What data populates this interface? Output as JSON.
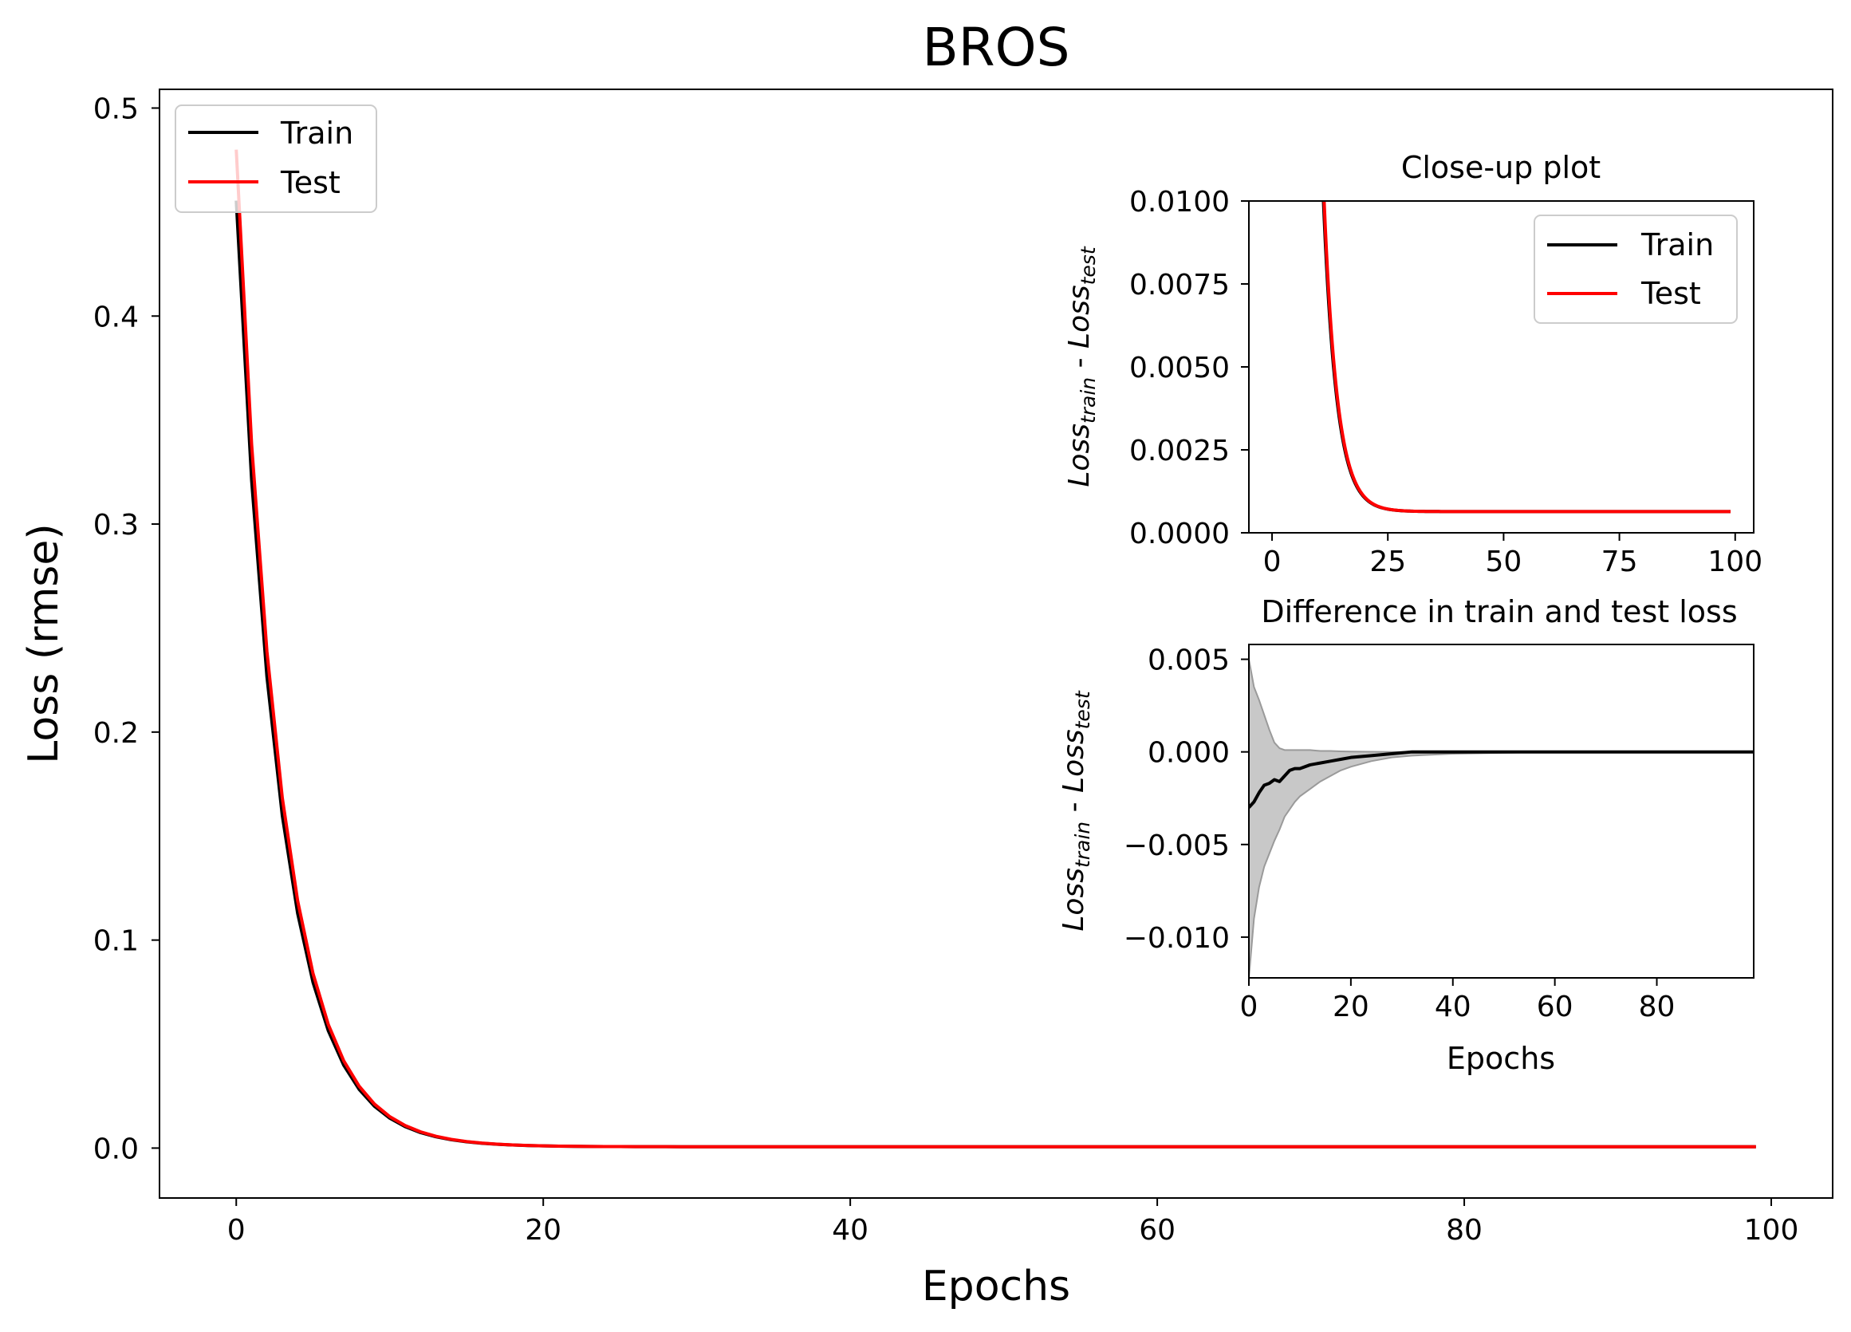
{
  "chart_data": [
    {
      "id": "main",
      "type": "line",
      "title": "BROS",
      "xlabel": "Epochs",
      "ylabel": "Loss (rmse)",
      "xlim": [
        -5,
        104
      ],
      "ylim": [
        -0.024,
        0.509
      ],
      "xticks": [
        0,
        20,
        40,
        60,
        80,
        100
      ],
      "xtick_labels": [
        "0",
        "20",
        "40",
        "60",
        "80",
        "100"
      ],
      "yticks": [
        0.0,
        0.1,
        0.2,
        0.3,
        0.4,
        0.5
      ],
      "ytick_labels": [
        "0.0",
        "0.1",
        "0.2",
        "0.3",
        "0.4",
        "0.5"
      ],
      "grid": false,
      "legend": {
        "location": "upper-left",
        "entries": [
          "Train",
          "Test"
        ]
      },
      "series": [
        {
          "name": "Train",
          "color": "#000000",
          "model": {
            "start": 0.48,
            "decay": 0.35,
            "floor": 0.00064,
            "x_shift": -0.15
          }
        },
        {
          "name": "Test",
          "color": "#ff0000",
          "model": {
            "start": 0.48,
            "decay": 0.35,
            "floor": 0.00064,
            "x_shift": 0.0
          }
        }
      ],
      "x_range": [
        0,
        99
      ]
    },
    {
      "id": "closeup",
      "type": "line",
      "title": "Close-up plot",
      "xlabel": "",
      "ylabel": "Loss_train - Loss_test",
      "ylabel_parts": {
        "a": "Loss",
        "a_sub": "train",
        "sep": " - ",
        "b": "Loss",
        "b_sub": "test"
      },
      "xlim": [
        -5,
        104
      ],
      "ylim": [
        0.0,
        0.01
      ],
      "xticks": [
        0,
        25,
        50,
        75,
        100
      ],
      "xtick_labels": [
        "0",
        "25",
        "50",
        "75",
        "100"
      ],
      "yticks": [
        0.0,
        0.0025,
        0.005,
        0.0075,
        0.01
      ],
      "ytick_labels": [
        "0.0000",
        "0.0025",
        "0.0050",
        "0.0075",
        "0.0100"
      ],
      "grid": false,
      "legend": {
        "location": "upper-right",
        "entries": [
          "Train",
          "Test"
        ]
      }
    },
    {
      "id": "difference",
      "type": "area",
      "title": "Difference in train and test loss",
      "xlabel": "Epochs",
      "ylabel": "Loss_train - Loss_test",
      "ylabel_parts": {
        "a": "Loss",
        "a_sub": "train",
        "sep": " - ",
        "b": "Loss",
        "b_sub": "test"
      },
      "xlim": [
        0,
        99
      ],
      "ylim": [
        -0.0122,
        0.0058
      ],
      "xticks": [
        0,
        20,
        40,
        60,
        80
      ],
      "xtick_labels": [
        "0",
        "20",
        "40",
        "60",
        "80"
      ],
      "yticks": [
        -0.01,
        -0.005,
        0.0,
        0.005
      ],
      "ytick_labels": [
        "−0.010",
        "−0.005",
        "0.000",
        "0.005"
      ],
      "grid": false,
      "mean": {
        "color": "#000000",
        "x": [
          0,
          1,
          2,
          3,
          4,
          5,
          6,
          7,
          8,
          9,
          10,
          12,
          14,
          16,
          18,
          20,
          24,
          28,
          32,
          40,
          60,
          80,
          99
        ],
        "y": [
          -0.003,
          -0.0027,
          -0.0022,
          -0.0018,
          -0.0017,
          -0.0015,
          -0.0016,
          -0.0013,
          -0.001,
          -0.0009,
          -0.0009,
          -0.0007,
          -0.0006,
          -0.0005,
          -0.0004,
          -0.0003,
          -0.0002,
          -0.0001,
          0.0,
          0.0,
          0.0,
          0.0,
          0.0
        ]
      },
      "band": {
        "color": "#c8c8c8",
        "x": [
          0,
          1,
          2,
          3,
          4,
          5,
          6,
          7,
          8,
          9,
          10,
          12,
          14,
          16,
          18,
          20,
          24,
          28,
          32,
          40,
          60,
          80,
          99
        ],
        "upper": [
          0.005,
          0.0035,
          0.0028,
          0.002,
          0.0012,
          0.0005,
          0.0002,
          0.0001,
          0.0001,
          0.0001,
          0.0001,
          0.0001,
          5e-05,
          5e-05,
          3e-05,
          2e-05,
          1e-05,
          0.0,
          0.0,
          0.0,
          0.0,
          0.0,
          0.0
        ],
        "lower": [
          -0.0122,
          -0.009,
          -0.0073,
          -0.0062,
          -0.0055,
          -0.0048,
          -0.0042,
          -0.0035,
          -0.0031,
          -0.0027,
          -0.0024,
          -0.002,
          -0.0016,
          -0.0013,
          -0.001,
          -0.0008,
          -0.0005,
          -0.0003,
          -0.0002,
          -0.0001,
          0.0,
          0.0,
          0.0
        ]
      }
    }
  ]
}
